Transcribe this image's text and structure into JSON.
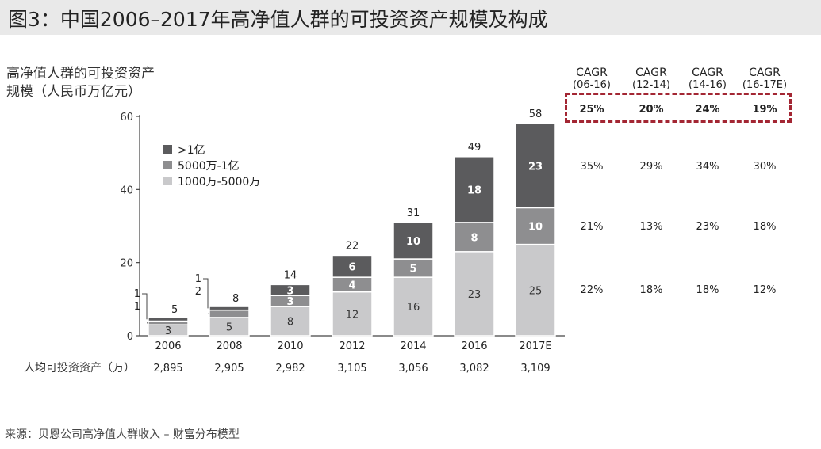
{
  "title": "图3：中国2006–2017年高净值人群的可投资资产规模及构成",
  "y_axis_label_line1": "高净值人群的可投资资产",
  "y_axis_label_line2": "规模（人民币万亿元）",
  "source": "来源：贝恩公司高净值人群收入 – 财富分布模型",
  "per_capita_label": "人均可投资资产（万）",
  "per_capita": [
    "2,895",
    "2,905",
    "2,982",
    "3,105",
    "3,056",
    "3,082",
    "3,109"
  ],
  "colors": {
    "dark": "#5b5b5d",
    "mid": "#8e8e90",
    "light": "#c9c9cb",
    "highlight": "#a32633"
  },
  "cagr": {
    "headers": [
      [
        "CAGR",
        "(06-16)"
      ],
      [
        "CAGR",
        "(12-14)"
      ],
      [
        "CAGR",
        "(14-16)"
      ],
      [
        "CAGR",
        "(16-17E)"
      ]
    ],
    "rows": [
      {
        "values": [
          "25%",
          "20%",
          "24%",
          "19%"
        ],
        "highlight": true
      },
      {
        "values": [
          "35%",
          "29%",
          "34%",
          "30%"
        ]
      },
      {
        "values": [
          "21%",
          "13%",
          "23%",
          "18%"
        ]
      },
      {
        "values": [
          "22%",
          "18%",
          "18%",
          "12%"
        ]
      }
    ]
  },
  "chart_data": {
    "type": "bar",
    "stacked": true,
    "categories": [
      "2006",
      "2008",
      "2010",
      "2012",
      "2014",
      "2016",
      "2017E"
    ],
    "series": [
      {
        "name": "1000万-5000万",
        "values": [
          3,
          5,
          8,
          12,
          16,
          23,
          25
        ]
      },
      {
        "name": "5000万-1亿",
        "values": [
          1,
          2,
          3,
          4,
          5,
          8,
          10
        ]
      },
      {
        "name": ">1亿",
        "values": [
          1,
          1,
          3,
          6,
          10,
          18,
          23
        ]
      }
    ],
    "totals": [
      5,
      8,
      14,
      22,
      31,
      49,
      58
    ],
    "legend_order": [
      ">1亿",
      "5000万-1亿",
      "1000万-5000万"
    ],
    "yticks": [
      0,
      20,
      40,
      60
    ],
    "ylim": [
      0,
      60
    ],
    "legend_position": "top-left"
  }
}
